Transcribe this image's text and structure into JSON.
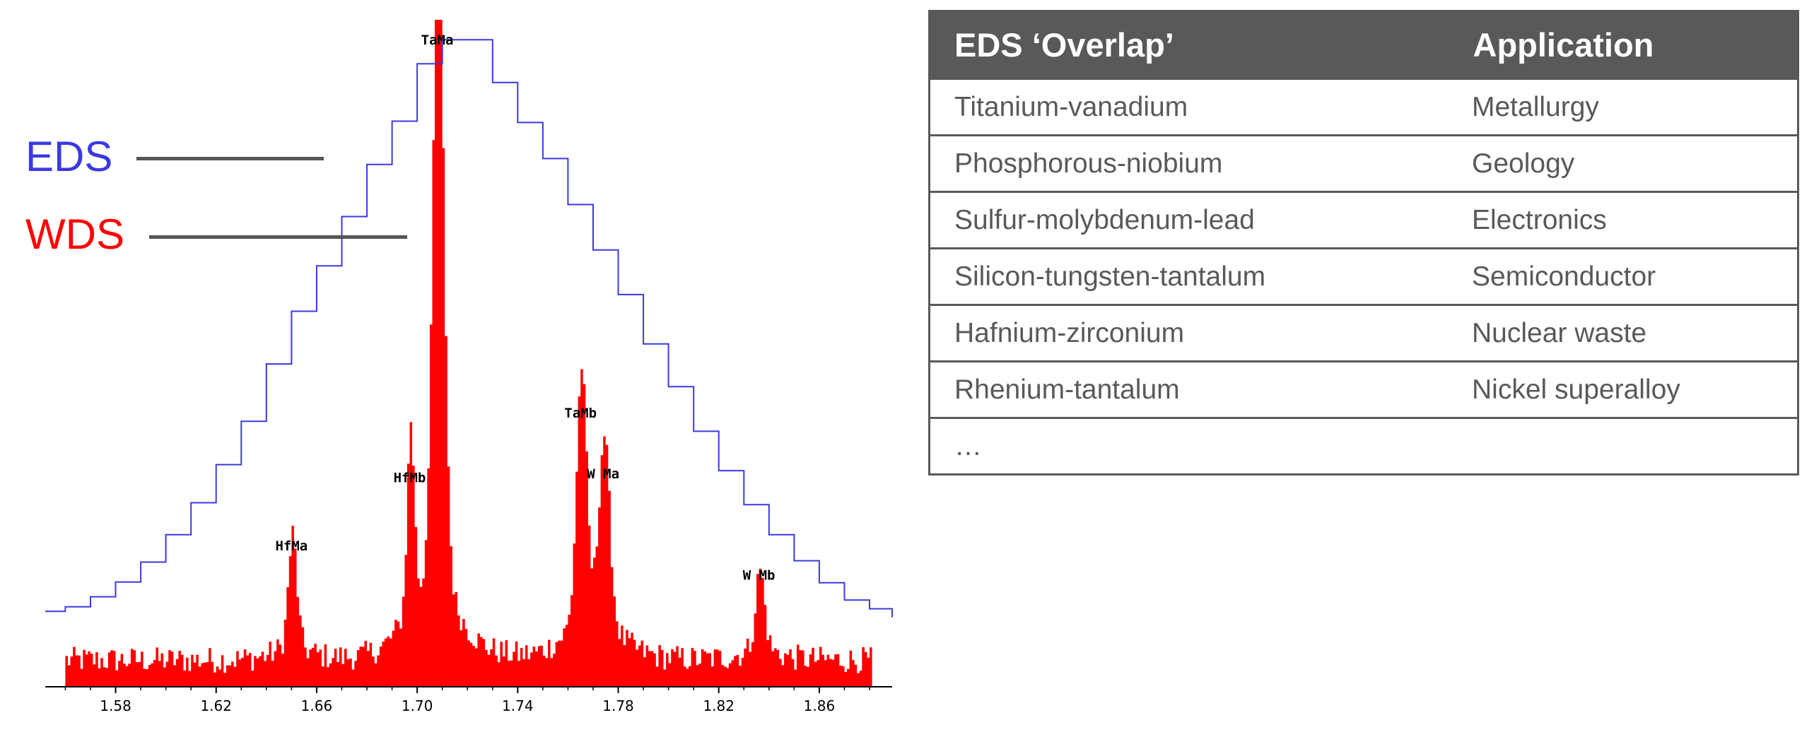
{
  "legend": {
    "eds_label": "EDS",
    "wds_label": "WDS",
    "eds_color": "#3a3adf",
    "wds_color": "#ff0000"
  },
  "chart_data": {
    "type": "area",
    "title": "",
    "xlabel": "",
    "ylabel": "",
    "xlim": [
      1.552,
      1.889
    ],
    "ylim": [
      0,
      1.0
    ],
    "xticks": [
      1.58,
      1.62,
      1.66,
      1.7,
      1.74,
      1.78,
      1.82,
      1.86
    ],
    "xtick_labels": [
      "1.58",
      "1.62",
      "1.66",
      "1.70",
      "1.74",
      "1.78",
      "1.82",
      "1.86"
    ],
    "series": [
      {
        "name": "EDS",
        "color": "#3a3adf",
        "style": "step",
        "x": [
          1.552,
          1.56,
          1.57,
          1.58,
          1.59,
          1.6,
          1.61,
          1.62,
          1.63,
          1.64,
          1.65,
          1.66,
          1.67,
          1.68,
          1.69,
          1.7,
          1.71,
          1.72,
          1.73,
          1.74,
          1.75,
          1.76,
          1.77,
          1.78,
          1.79,
          1.8,
          1.81,
          1.82,
          1.83,
          1.84,
          1.85,
          1.86,
          1.87,
          1.88,
          1.889
        ],
        "y": [
          0.113,
          0.12,
          0.135,
          0.157,
          0.187,
          0.228,
          0.276,
          0.333,
          0.398,
          0.484,
          0.563,
          0.631,
          0.705,
          0.783,
          0.848,
          0.934,
          0.97,
          0.97,
          0.906,
          0.846,
          0.792,
          0.723,
          0.655,
          0.588,
          0.514,
          0.45,
          0.383,
          0.324,
          0.273,
          0.228,
          0.189,
          0.156,
          0.13,
          0.117,
          0.104
        ]
      },
      {
        "name": "WDS",
        "color": "#ff0000",
        "style": "filled",
        "peaks": [
          {
            "label": "HfMa",
            "x": 1.65,
            "y": 0.194
          },
          {
            "label": "HfMb",
            "x": 1.697,
            "y": 0.296
          },
          {
            "label": "TaMa",
            "x": 1.708,
            "y": 0.965
          },
          {
            "label": "TaMb",
            "x": 1.765,
            "y": 0.393
          },
          {
            "label": "W Ma",
            "x": 1.774,
            "y": 0.302
          },
          {
            "label": "W Mb",
            "x": 1.836,
            "y": 0.15
          }
        ],
        "baseline_range": [
          0.02,
          0.06
        ]
      }
    ]
  },
  "table": {
    "headers": [
      "EDS ‘Overlap’",
      "Application"
    ],
    "rows": [
      [
        "Titanium-vanadium",
        "Metallurgy"
      ],
      [
        "Phosphorous-niobium",
        "Geology"
      ],
      [
        "Sulfur-molybdenum-lead",
        "Electronics"
      ],
      [
        "Silicon-tungsten-tantalum",
        "Semiconductor"
      ],
      [
        "Hafnium-zirconium",
        "Nuclear waste"
      ],
      [
        "Rhenium-tantalum",
        "Nickel superalloy"
      ],
      [
        "…",
        ""
      ]
    ]
  }
}
